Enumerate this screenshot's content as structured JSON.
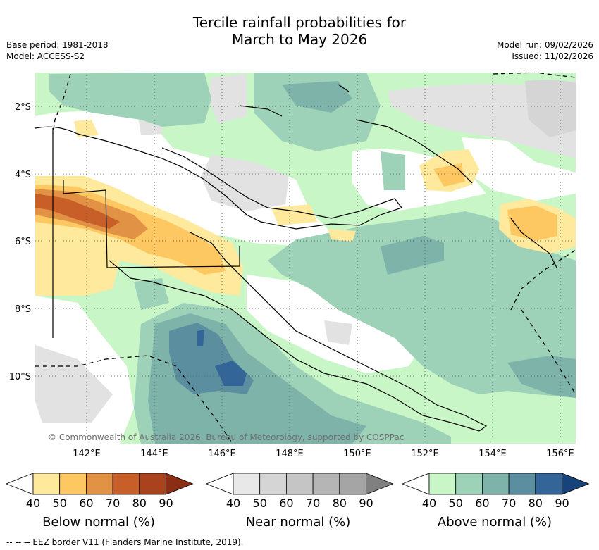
{
  "title_line1": "Tercile rainfall probabilities for",
  "title_line2": "March to May 2026",
  "base_period": "Base period: 1981-2018",
  "model": "Model: ACCESS-S2",
  "model_run": "Model run: 09/02/2026",
  "issued": "Issued: 11/02/2026",
  "copyright": "© Commonwealth of Australia 2026, Bureau of Meteorology, supported by COSPPac",
  "lat_labels": [
    "2°S",
    "4°S",
    "6°S",
    "8°S",
    "10°S"
  ],
  "lon_labels": [
    "142°E",
    "144°E",
    "146°E",
    "148°E",
    "150°E",
    "152°E",
    "154°E",
    "156°E"
  ],
  "colorbars": [
    {
      "label": "Below normal (%)",
      "ticks": [
        "40",
        "50",
        "60",
        "70",
        "80",
        "90"
      ],
      "colors": [
        "#ffffff",
        "#fee99c",
        "#fdc861",
        "#e19244",
        "#c85e28",
        "#a8431e",
        "#8c2d15"
      ]
    },
    {
      "label": "Near normal (%)",
      "ticks": [
        "40",
        "50",
        "60",
        "70",
        "80",
        "90"
      ],
      "colors": [
        "#ffffff",
        "#e8e8e8",
        "#d5d5d5",
        "#c5c5c5",
        "#b5b5b5",
        "#a5a5a5",
        "#808080"
      ]
    },
    {
      "label": "Above normal (%)",
      "ticks": [
        "40",
        "50",
        "60",
        "70",
        "80",
        "90"
      ],
      "colors": [
        "#ffffff",
        "#c9f6c7",
        "#9dd2b9",
        "#7eb3aa",
        "#5b8fa0",
        "#336598",
        "#17427a"
      ]
    }
  ],
  "footnote": "--  --  -- EEZ border V11 (Flanders Marine Institute, 2019)."
}
